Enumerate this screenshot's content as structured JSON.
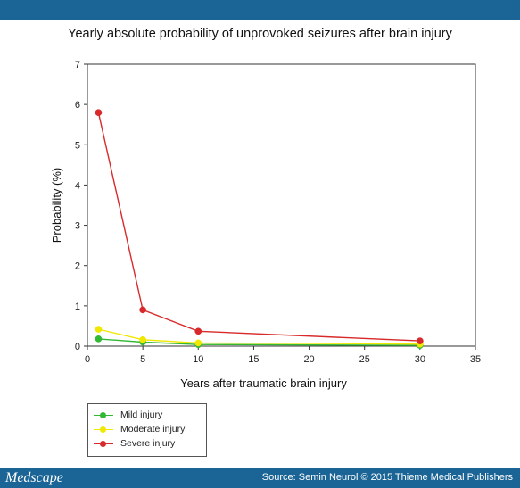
{
  "header": {
    "brand": "Medscape",
    "source": "Source: Semin Neurol © 2015 Thieme Medical Publishers"
  },
  "chart_data": {
    "type": "line",
    "title": "Yearly absolute probability of unprovoked seizures after brain injury",
    "xlabel": "Years after traumatic brain injury",
    "ylabel": "Probability (%)",
    "xlim": [
      0,
      35
    ],
    "ylim": [
      0,
      7
    ],
    "xticks": [
      0,
      5,
      10,
      15,
      20,
      25,
      30,
      35
    ],
    "yticks": [
      0,
      1,
      2,
      3,
      4,
      5,
      6,
      7
    ],
    "grid": false,
    "legend_position": "bottom-left",
    "series": [
      {
        "name": "Mild injury",
        "color": "#33b833",
        "x": [
          1,
          5,
          10,
          30
        ],
        "y": [
          0.18,
          0.1,
          0.04,
          0.02
        ]
      },
      {
        "name": "Moderate injury",
        "color": "#f0e800",
        "x": [
          1,
          5,
          10,
          30
        ],
        "y": [
          0.42,
          0.16,
          0.08,
          0.05
        ]
      },
      {
        "name": "Severe injury",
        "color": "#d82a2a",
        "x": [
          1,
          5,
          10,
          30
        ],
        "y": [
          5.8,
          0.9,
          0.37,
          0.13
        ]
      }
    ]
  }
}
